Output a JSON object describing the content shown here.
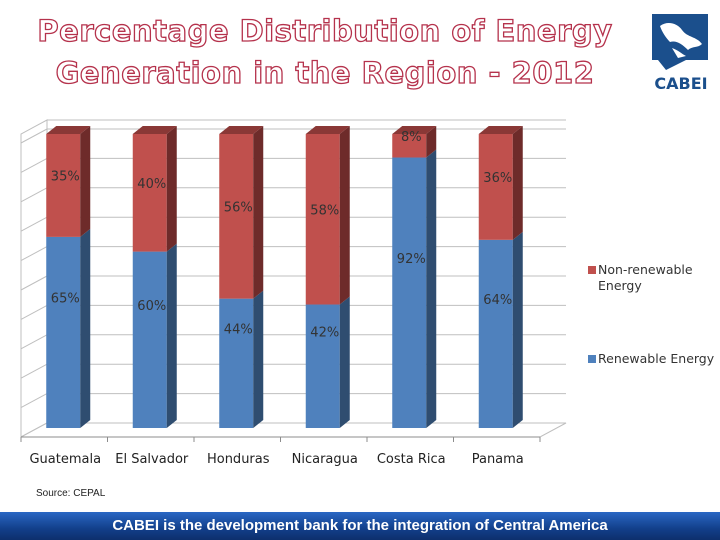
{
  "slide": {
    "title_line1": "Percentage Distribution of Energy",
    "title_line2": "Generation in the Region - 2012",
    "logo_text": "CABEI",
    "source": "Source: CEPAL",
    "footer": "CABEI is the development bank for the integration of Central America"
  },
  "chart_data": {
    "type": "bar",
    "stacked": true,
    "percent_stacked": true,
    "style": "3d-columns",
    "title": "Percentage Distribution of Energy Generation in the Region - 2012",
    "categories": [
      "Guatemala",
      "El Salvador",
      "Honduras",
      "Nicaragua",
      "Costa Rica",
      "Panama"
    ],
    "series": [
      {
        "name": "Renewable Energy",
        "values": [
          65,
          60,
          44,
          42,
          92,
          64
        ],
        "labels": [
          "65%",
          "60%",
          "44%",
          "42%",
          "92%",
          "64%"
        ],
        "color": "#4f81bd",
        "side_color": "#2f4d70"
      },
      {
        "name": "Non-renewable Energy",
        "values": [
          35,
          40,
          56,
          58,
          8,
          36
        ],
        "labels": [
          "35%",
          "40%",
          "56%",
          "58%",
          "8%",
          "36%"
        ],
        "color": "#c0504d",
        "side_color": "#6e2b2a"
      }
    ],
    "legend": [
      {
        "label": "Non-renewable Energy",
        "color": "#c0504d"
      },
      {
        "label": "Renewable Energy",
        "color": "#4f81bd"
      }
    ],
    "legend_position": "right",
    "ylim": [
      0,
      100
    ],
    "grid": true,
    "xlabel": "",
    "ylabel": ""
  }
}
